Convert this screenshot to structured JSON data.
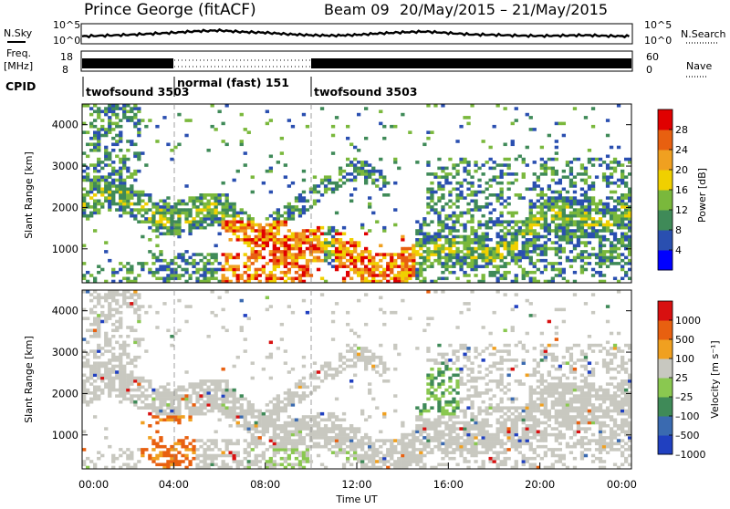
{
  "header": {
    "station": "Prince George (fitACF)",
    "beam_label": "Beam 09",
    "date_range": "20/May/2015 – 21/May/2015"
  },
  "left_labels": {
    "nsky": "N.Sky",
    "freq_line1": "Freq.",
    "freq_line2": "[MHz]",
    "cpid": "CPID"
  },
  "right_labels": {
    "nsearch": "N.Search",
    "nave": "Nave"
  },
  "time_axis": {
    "label": "Time UT",
    "ticks": [
      "00:00",
      "04:00",
      "08:00",
      "12:00",
      "16:00",
      "20:00",
      "00:00"
    ]
  },
  "colors": {
    "power_scale": [
      "#0000ff",
      "#2a4fb0",
      "#3f8a58",
      "#7ab83c",
      "#f0d000",
      "#f0a020",
      "#e86010",
      "#e00000"
    ],
    "velocity_scale": [
      "#2040c0",
      "#3a6ab0",
      "#3f8a58",
      "#8ac850",
      "#c8c8c0",
      "#f0a020",
      "#e86010",
      "#d81010"
    ]
  },
  "chart_data": [
    {
      "type": "line",
      "name": "noise",
      "left_ticks": [
        "10^5",
        "10^0"
      ],
      "right_ticks": [
        "10^5",
        "10^0"
      ],
      "x": [
        0,
        1,
        2,
        3,
        4,
        5,
        6,
        7,
        8,
        9,
        10,
        11,
        12,
        13,
        14,
        15,
        16,
        17,
        18,
        19,
        20,
        21,
        22,
        23,
        24
      ],
      "nsky_log10": [
        1.8,
        2.0,
        2.2,
        2.5,
        2.8,
        3.2,
        3.4,
        3.0,
        2.8,
        2.4,
        2.1,
        2.0,
        2.2,
        2.6,
        2.9,
        3.1,
        2.7,
        2.3,
        2.2,
        2.0,
        1.9,
        2.0,
        2.1,
        1.9,
        1.8
      ],
      "ylim": [
        0,
        5
      ]
    },
    {
      "type": "line",
      "name": "freq_nave",
      "left_ticks": [
        "18",
        "8"
      ],
      "right_ticks": [
        "60",
        "0"
      ],
      "ylim": [
        8,
        18
      ]
    },
    {
      "type": "table",
      "name": "cpid",
      "entries": [
        {
          "start_hour": 0,
          "label": "twofsound 3503"
        },
        {
          "start_hour": 4,
          "label": "normal (fast) 151"
        },
        {
          "start_hour": 10,
          "label": "twofsound 3503"
        }
      ]
    },
    {
      "type": "heatmap",
      "name": "power",
      "ylabel": "Slant Range [km]",
      "yticks": [
        "1000",
        "2000",
        "3000",
        "4000"
      ],
      "ylim": [
        180,
        4500
      ],
      "xlim": [
        0,
        24
      ],
      "colorbar": {
        "label": "Power [dB]",
        "ticks": [
          "4",
          "8",
          "12",
          "16",
          "20",
          "24",
          "28"
        ],
        "range": [
          0,
          30
        ]
      }
    },
    {
      "type": "heatmap",
      "name": "velocity",
      "ylabel": "Slant Range [km]",
      "yticks": [
        "1000",
        "2000",
        "3000",
        "4000"
      ],
      "ylim": [
        180,
        4500
      ],
      "xlim": [
        0,
        24
      ],
      "colorbar": {
        "label": "Velocity [m s⁻¹]",
        "ticks": [
          "1000",
          "500",
          "100",
          "25",
          "–25",
          "–100",
          "–500",
          "–1000"
        ]
      }
    }
  ]
}
